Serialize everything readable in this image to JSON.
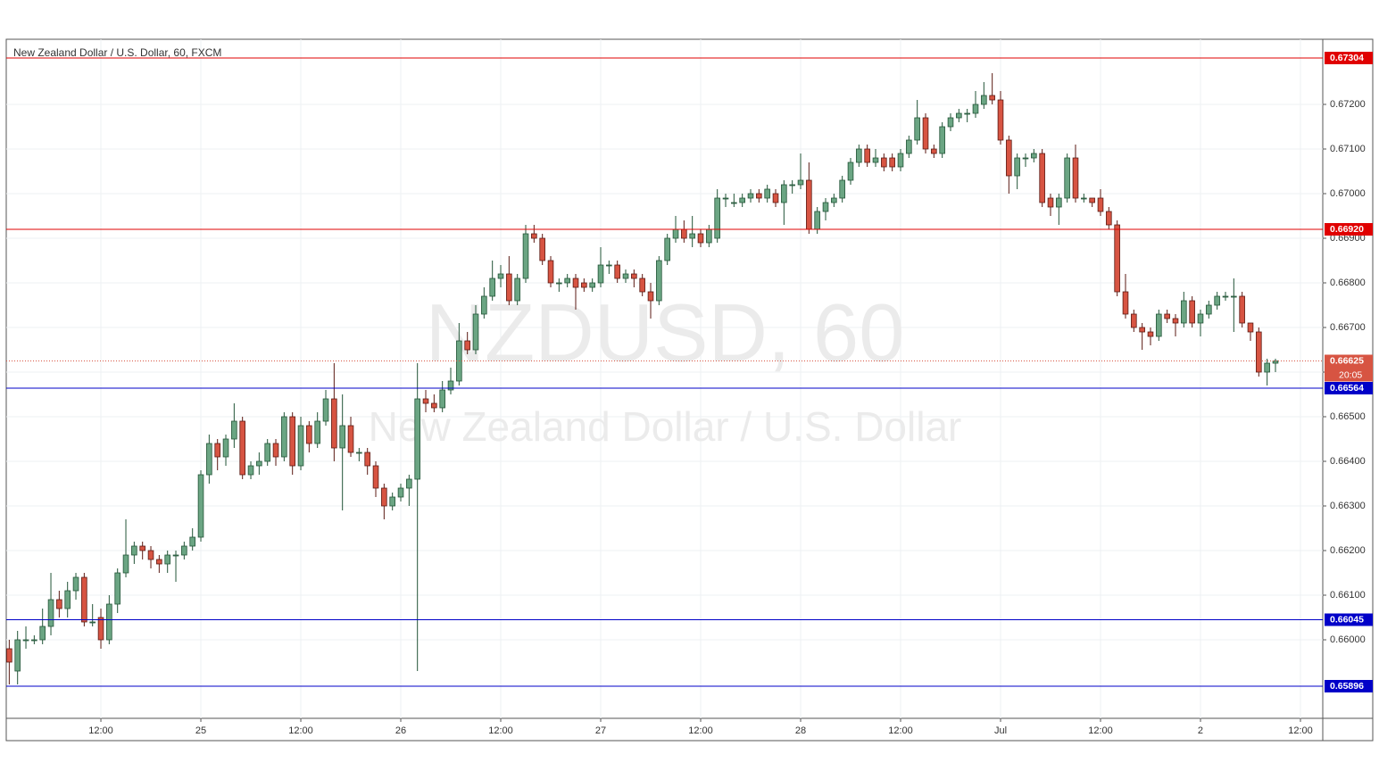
{
  "chart_data": {
    "type": "candlestick",
    "title": "New Zealand Dollar / U.S. Dollar, 60, FXCM",
    "watermark": "NZDUSD, 60",
    "watermark_subtitle": "New Zealand Dollar / U.S. Dollar",
    "up_color": "#6ba583",
    "down_color": "#d75442",
    "up_border": "#225437",
    "down_border": "#5b1a13",
    "grid": true,
    "xlim": [
      0.64,
      158.68
    ],
    "ylim": [
      0.65824,
      0.67346
    ],
    "xticks": [
      {
        "value": 12,
        "label": "12:00"
      },
      {
        "value": 24,
        "label": "25"
      },
      {
        "value": 36,
        "label": "12:00"
      },
      {
        "value": 48,
        "label": "26"
      },
      {
        "value": 60,
        "label": "12:00"
      },
      {
        "value": 72,
        "label": "27"
      },
      {
        "value": 84,
        "label": "12:00"
      },
      {
        "value": 96,
        "label": "28"
      },
      {
        "value": 108,
        "label": "12:00"
      },
      {
        "value": 120,
        "label": "Jul"
      },
      {
        "value": 132,
        "label": "12:00"
      },
      {
        "value": 144,
        "label": "2"
      },
      {
        "value": 156,
        "label": "12:00"
      }
    ],
    "yticks": [
      {
        "value": 0.66,
        "label": "0.66000"
      },
      {
        "value": 0.661,
        "label": "0.66100"
      },
      {
        "value": 0.662,
        "label": "0.66200"
      },
      {
        "value": 0.663,
        "label": "0.66300"
      },
      {
        "value": 0.664,
        "label": "0.66400"
      },
      {
        "value": 0.665,
        "label": "0.66500"
      },
      {
        "value": 0.666,
        "label": "0.66600"
      },
      {
        "value": 0.667,
        "label": "0.66700"
      },
      {
        "value": 0.668,
        "label": "0.66800"
      },
      {
        "value": 0.669,
        "label": "0.66900"
      },
      {
        "value": 0.67,
        "label": "0.67000"
      },
      {
        "value": 0.671,
        "label": "0.67100"
      },
      {
        "value": 0.672,
        "label": "0.67200"
      }
    ],
    "levels": [
      {
        "value": 0.67304,
        "label": "0.67304",
        "color": "#e00000"
      },
      {
        "value": 0.6692,
        "label": "0.66920",
        "color": "#e00000"
      },
      {
        "value": 0.66564,
        "label": "0.66564",
        "color": "#0000c8"
      },
      {
        "value": 0.66045,
        "label": "0.66045",
        "color": "#0000c8"
      },
      {
        "value": 0.65896,
        "label": "0.65896",
        "color": "#0000c8"
      }
    ],
    "last": {
      "value": 0.66625,
      "label": "0.66625",
      "countdown": "20:05",
      "color": "#d75442"
    },
    "x": [
      1,
      2,
      3,
      4,
      5,
      6,
      7,
      8,
      9,
      10,
      11,
      12,
      13,
      14,
      15,
      16,
      17,
      18,
      19,
      20,
      21,
      22,
      23,
      24,
      25,
      26,
      27,
      28,
      29,
      30,
      31,
      32,
      33,
      34,
      35,
      36,
      37,
      38,
      39,
      40,
      41,
      42,
      43,
      44,
      45,
      46,
      47,
      48,
      49,
      50,
      51,
      52,
      53,
      54,
      55,
      56,
      57,
      58,
      59,
      60,
      61,
      62,
      63,
      64,
      65,
      66,
      67,
      68,
      69,
      70,
      71,
      72,
      73,
      74,
      75,
      76,
      77,
      78,
      79,
      80,
      81,
      82,
      83,
      84,
      85,
      86,
      87,
      88,
      89,
      90,
      91,
      92,
      93,
      94,
      95,
      96,
      97,
      98,
      99,
      100,
      101,
      102,
      103,
      104,
      105,
      106,
      107,
      108,
      109,
      110,
      111,
      112,
      113,
      114,
      115,
      116,
      117,
      118,
      119,
      120,
      121,
      122,
      123,
      124,
      125,
      126,
      127,
      128,
      129,
      130,
      131,
      132,
      133,
      134,
      135,
      136,
      137,
      138,
      139,
      140,
      141,
      142,
      143,
      144,
      145,
      146,
      147,
      148,
      149,
      150,
      151,
      152,
      153
    ],
    "open": [
      0.6598,
      0.6593,
      0.66,
      0.66,
      0.66,
      0.6603,
      0.6609,
      0.6607,
      0.6611,
      0.6614,
      0.6604,
      0.6605,
      0.66,
      0.6608,
      0.6615,
      0.6619,
      0.6621,
      0.662,
      0.6618,
      0.6617,
      0.6619,
      0.6619,
      0.6621,
      0.6623,
      0.6637,
      0.6644,
      0.6641,
      0.6645,
      0.6649,
      0.6637,
      0.6639,
      0.664,
      0.6644,
      0.6641,
      0.665,
      0.6639,
      0.6648,
      0.6644,
      0.6649,
      0.6654,
      0.6643,
      0.6648,
      0.6642,
      0.6642,
      0.6639,
      0.6634,
      0.663,
      0.6632,
      0.6634,
      0.6636,
      0.6654,
      0.6653,
      0.6652,
      0.6656,
      0.6658,
      0.6667,
      0.6665,
      0.6673,
      0.6677,
      0.6681,
      0.6682,
      0.6676,
      0.6681,
      0.6691,
      0.669,
      0.6685,
      0.668,
      0.668,
      0.6681,
      0.668,
      0.6679,
      0.668,
      0.6684,
      0.6684,
      0.6681,
      0.6682,
      0.6681,
      0.6678,
      0.6676,
      0.6685,
      0.669,
      0.6692,
      0.669,
      0.6691,
      0.6689,
      0.669,
      0.6699,
      0.6698,
      0.6698,
      0.6699,
      0.67,
      0.6699,
      0.67,
      0.6698,
      0.6702,
      0.6702,
      0.6703,
      0.6692,
      0.6696,
      0.6698,
      0.6699,
      0.6703,
      0.6707,
      0.671,
      0.6707,
      0.6708,
      0.6708,
      0.6706,
      0.6709,
      0.6712,
      0.6717,
      0.671,
      0.6709,
      0.6715,
      0.6717,
      0.6718,
      0.6718,
      0.672,
      0.6722,
      0.6721,
      0.6712,
      0.6704,
      0.6708,
      0.6708,
      0.6709,
      0.6699,
      0.6697,
      0.6699,
      0.6708,
      0.6699,
      0.6699,
      0.6699,
      0.6696,
      0.6693,
      0.6678,
      0.6673,
      0.667,
      0.6669,
      0.6668,
      0.6673,
      0.6672,
      0.6671,
      0.6676,
      0.6671,
      0.6673,
      0.6675,
      0.6677,
      0.6677,
      0.6677,
      0.6671,
      0.6669,
      0.666,
      0.6662
    ],
    "high": [
      0.66,
      0.6602,
      0.6603,
      0.6601,
      0.6607,
      0.6615,
      0.6611,
      0.6613,
      0.6615,
      0.6615,
      0.6608,
      0.6607,
      0.661,
      0.6616,
      0.6627,
      0.6622,
      0.6622,
      0.6621,
      0.6619,
      0.662,
      0.662,
      0.6622,
      0.6625,
      0.6638,
      0.6646,
      0.6645,
      0.6646,
      0.6653,
      0.665,
      0.664,
      0.6642,
      0.6645,
      0.6645,
      0.6651,
      0.6651,
      0.665,
      0.6649,
      0.6651,
      0.6656,
      0.6662,
      0.6655,
      0.665,
      0.6643,
      0.6643,
      0.664,
      0.6635,
      0.6633,
      0.6635,
      0.6637,
      0.6662,
      0.6656,
      0.6655,
      0.6658,
      0.6661,
      0.6671,
      0.6669,
      0.6675,
      0.6679,
      0.6685,
      0.6684,
      0.6686,
      0.6682,
      0.6693,
      0.6693,
      0.6691,
      0.6686,
      0.6681,
      0.6682,
      0.6682,
      0.6681,
      0.6681,
      0.6688,
      0.6685,
      0.6685,
      0.6683,
      0.6683,
      0.6682,
      0.668,
      0.6686,
      0.6691,
      0.6695,
      0.6694,
      0.6695,
      0.6692,
      0.6693,
      0.6701,
      0.67,
      0.67,
      0.67,
      0.6701,
      0.6701,
      0.6702,
      0.6701,
      0.6703,
      0.6703,
      0.6709,
      0.6707,
      0.6697,
      0.6699,
      0.67,
      0.6704,
      0.6708,
      0.6711,
      0.6711,
      0.671,
      0.6709,
      0.6709,
      0.671,
      0.6713,
      0.6721,
      0.6718,
      0.6711,
      0.6716,
      0.6718,
      0.6719,
      0.6719,
      0.6723,
      0.6725,
      0.6727,
      0.6723,
      0.6713,
      0.6709,
      0.6709,
      0.671,
      0.671,
      0.67,
      0.67,
      0.6709,
      0.6711,
      0.67,
      0.6699,
      0.6701,
      0.6697,
      0.6694,
      0.6682,
      0.6674,
      0.6671,
      0.667,
      0.6674,
      0.6674,
      0.6673,
      0.6678,
      0.6677,
      0.6674,
      0.6676,
      0.6678,
      0.6678,
      0.6681,
      0.6678,
      0.6671,
      0.667,
      0.6663,
      0.6663
    ],
    "low": [
      0.659,
      0.659,
      0.6598,
      0.6599,
      0.6599,
      0.6601,
      0.6605,
      0.6605,
      0.6609,
      0.6603,
      0.6603,
      0.6598,
      0.6599,
      0.6606,
      0.6614,
      0.6617,
      0.6618,
      0.6616,
      0.6615,
      0.6615,
      0.6613,
      0.6618,
      0.662,
      0.6622,
      0.6635,
      0.6638,
      0.6639,
      0.6643,
      0.6636,
      0.6636,
      0.6637,
      0.6639,
      0.6639,
      0.664,
      0.6637,
      0.6638,
      0.6642,
      0.6643,
      0.6648,
      0.664,
      0.6629,
      0.6641,
      0.664,
      0.6637,
      0.6632,
      0.6627,
      0.6629,
      0.6631,
      0.663,
      0.6593,
      0.6651,
      0.6651,
      0.6651,
      0.6655,
      0.6657,
      0.6664,
      0.6664,
      0.6672,
      0.6676,
      0.6679,
      0.6675,
      0.6675,
      0.668,
      0.6689,
      0.6684,
      0.6679,
      0.6678,
      0.6679,
      0.6674,
      0.6678,
      0.6678,
      0.6679,
      0.6682,
      0.668,
      0.668,
      0.6679,
      0.6677,
      0.6672,
      0.6675,
      0.6684,
      0.6689,
      0.6689,
      0.6688,
      0.6688,
      0.6688,
      0.6689,
      0.6697,
      0.6697,
      0.6697,
      0.6698,
      0.6698,
      0.6698,
      0.6697,
      0.6693,
      0.67,
      0.6701,
      0.6691,
      0.6691,
      0.6694,
      0.6697,
      0.6698,
      0.6702,
      0.6706,
      0.6706,
      0.6706,
      0.6705,
      0.6705,
      0.6705,
      0.6708,
      0.6711,
      0.6709,
      0.6708,
      0.6708,
      0.6714,
      0.6716,
      0.6716,
      0.6717,
      0.6719,
      0.672,
      0.6711,
      0.67,
      0.6701,
      0.6706,
      0.6707,
      0.6697,
      0.6695,
      0.6693,
      0.6698,
      0.6698,
      0.6698,
      0.6697,
      0.6695,
      0.6692,
      0.6677,
      0.6672,
      0.6669,
      0.6665,
      0.6666,
      0.6667,
      0.6671,
      0.6668,
      0.667,
      0.667,
      0.6668,
      0.6672,
      0.6674,
      0.6676,
      0.6669,
      0.667,
      0.6667,
      0.6659,
      0.6657,
      0.666
    ],
    "close": [
      0.6595,
      0.66,
      0.66,
      0.66,
      0.6603,
      0.6609,
      0.6607,
      0.6611,
      0.6614,
      0.6604,
      0.6604,
      0.66,
      0.6608,
      0.6615,
      0.6619,
      0.6621,
      0.662,
      0.6618,
      0.6617,
      0.6619,
      0.6619,
      0.6621,
      0.6623,
      0.6637,
      0.6644,
      0.6641,
      0.6645,
      0.6649,
      0.6637,
      0.6639,
      0.664,
      0.6644,
      0.6641,
      0.665,
      0.6639,
      0.6648,
      0.6644,
      0.6649,
      0.6654,
      0.6643,
      0.6648,
      0.6642,
      0.6642,
      0.6639,
      0.6634,
      0.663,
      0.6632,
      0.6634,
      0.6636,
      0.6654,
      0.6653,
      0.6652,
      0.6656,
      0.6658,
      0.6667,
      0.6665,
      0.6673,
      0.6677,
      0.6681,
      0.6682,
      0.6676,
      0.6681,
      0.6691,
      0.669,
      0.6685,
      0.668,
      0.668,
      0.6681,
      0.6679,
      0.6679,
      0.668,
      0.6684,
      0.6684,
      0.6681,
      0.6682,
      0.6681,
      0.6678,
      0.6676,
      0.6685,
      0.669,
      0.6692,
      0.669,
      0.6691,
      0.6689,
      0.6692,
      0.6699,
      0.6699,
      0.6698,
      0.6699,
      0.67,
      0.6699,
      0.6701,
      0.6698,
      0.6702,
      0.6702,
      0.6703,
      0.6692,
      0.6696,
      0.6698,
      0.6699,
      0.6703,
      0.6707,
      0.671,
      0.6707,
      0.6708,
      0.6706,
      0.6706,
      0.6709,
      0.6712,
      0.6717,
      0.671,
      0.6709,
      0.6715,
      0.6717,
      0.6718,
      0.6718,
      0.672,
      0.6722,
      0.6721,
      0.6712,
      0.6704,
      0.6708,
      0.6708,
      0.6709,
      0.6698,
      0.6697,
      0.6699,
      0.6708,
      0.6699,
      0.6699,
      0.6698,
      0.6696,
      0.6693,
      0.6678,
      0.6673,
      0.667,
      0.6669,
      0.6668,
      0.6673,
      0.6672,
      0.6671,
      0.6676,
      0.6671,
      0.6673,
      0.6675,
      0.6677,
      0.6677,
      0.6677,
      0.6671,
      0.6669,
      0.666,
      0.6662,
      0.66625
    ]
  }
}
